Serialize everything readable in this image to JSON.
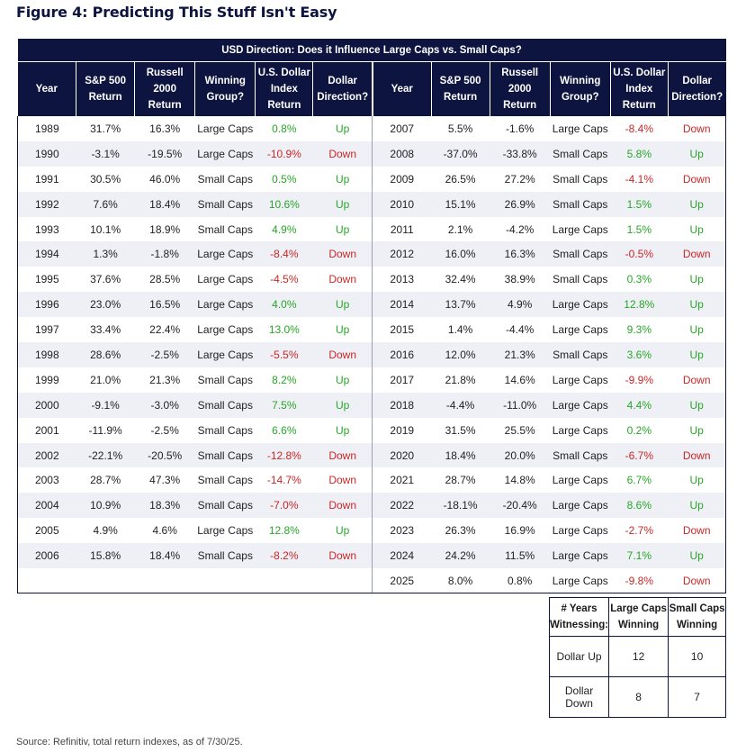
{
  "figure_title": "Figure 4: Predicting This Stuff Isn't Easy",
  "banner": "USD Direction: Does it Influence Large Caps vs. Small Caps?",
  "headers": {
    "year": "Year",
    "sp500": [
      "S&P 500",
      "Return"
    ],
    "russell": [
      "Russell",
      "2000",
      "Return"
    ],
    "winning": [
      "Winning",
      "Group?"
    ],
    "usd": [
      "U.S. Dollar",
      "Index",
      "Return"
    ],
    "direction": [
      "Dollar",
      "Direction?"
    ]
  },
  "left_rows": [
    [
      "1989",
      "31.7%",
      "16.3%",
      "Large Caps",
      "0.8%",
      "Up"
    ],
    [
      "1990",
      "-3.1%",
      "-19.5%",
      "Large Caps",
      "-10.9%",
      "Down"
    ],
    [
      "1991",
      "30.5%",
      "46.0%",
      "Small Caps",
      "0.5%",
      "Up"
    ],
    [
      "1992",
      "7.6%",
      "18.4%",
      "Small Caps",
      "10.6%",
      "Up"
    ],
    [
      "1993",
      "10.1%",
      "18.9%",
      "Small Caps",
      "4.9%",
      "Up"
    ],
    [
      "1994",
      "1.3%",
      "-1.8%",
      "Large Caps",
      "-8.4%",
      "Down"
    ],
    [
      "1995",
      "37.6%",
      "28.5%",
      "Large Caps",
      "-4.5%",
      "Down"
    ],
    [
      "1996",
      "23.0%",
      "16.5%",
      "Large Caps",
      "4.0%",
      "Up"
    ],
    [
      "1997",
      "33.4%",
      "22.4%",
      "Large Caps",
      "13.0%",
      "Up"
    ],
    [
      "1998",
      "28.6%",
      "-2.5%",
      "Large Caps",
      "-5.5%",
      "Down"
    ],
    [
      "1999",
      "21.0%",
      "21.3%",
      "Small Caps",
      "8.2%",
      "Up"
    ],
    [
      "2000",
      "-9.1%",
      "-3.0%",
      "Small Caps",
      "7.5%",
      "Up"
    ],
    [
      "2001",
      "-11.9%",
      "-2.5%",
      "Small Caps",
      "6.6%",
      "Up"
    ],
    [
      "2002",
      "-22.1%",
      "-20.5%",
      "Small Caps",
      "-12.8%",
      "Down"
    ],
    [
      "2003",
      "28.7%",
      "47.3%",
      "Small Caps",
      "-14.7%",
      "Down"
    ],
    [
      "2004",
      "10.9%",
      "18.3%",
      "Small Caps",
      "-7.0%",
      "Down"
    ],
    [
      "2005",
      "4.9%",
      "4.6%",
      "Large Caps",
      "12.8%",
      "Up"
    ],
    [
      "2006",
      "15.8%",
      "18.4%",
      "Small Caps",
      "-8.2%",
      "Down"
    ]
  ],
  "right_rows": [
    [
      "2007",
      "5.5%",
      "-1.6%",
      "Large Caps",
      "-8.4%",
      "Down"
    ],
    [
      "2008",
      "-37.0%",
      "-33.8%",
      "Small Caps",
      "5.8%",
      "Up"
    ],
    [
      "2009",
      "26.5%",
      "27.2%",
      "Small Caps",
      "-4.1%",
      "Down"
    ],
    [
      "2010",
      "15.1%",
      "26.9%",
      "Small Caps",
      "1.5%",
      "Up"
    ],
    [
      "2011",
      "2.1%",
      "-4.2%",
      "Large Caps",
      "1.5%",
      "Up"
    ],
    [
      "2012",
      "16.0%",
      "16.3%",
      "Small Caps",
      "-0.5%",
      "Down"
    ],
    [
      "2013",
      "32.4%",
      "38.9%",
      "Small Caps",
      "0.3%",
      "Up"
    ],
    [
      "2014",
      "13.7%",
      "4.9%",
      "Large Caps",
      "12.8%",
      "Up"
    ],
    [
      "2015",
      "1.4%",
      "-4.4%",
      "Large Caps",
      "9.3%",
      "Up"
    ],
    [
      "2016",
      "12.0%",
      "21.3%",
      "Small Caps",
      "3.6%",
      "Up"
    ],
    [
      "2017",
      "21.8%",
      "14.6%",
      "Large Caps",
      "-9.9%",
      "Down"
    ],
    [
      "2018",
      "-4.4%",
      "-11.0%",
      "Large Caps",
      "4.4%",
      "Up"
    ],
    [
      "2019",
      "31.5%",
      "25.5%",
      "Large Caps",
      "0.2%",
      "Up"
    ],
    [
      "2020",
      "18.4%",
      "20.0%",
      "Small Caps",
      "-6.7%",
      "Down"
    ],
    [
      "2021",
      "28.7%",
      "14.8%",
      "Large Caps",
      "6.7%",
      "Up"
    ],
    [
      "2022",
      "-18.1%",
      "-20.4%",
      "Large Caps",
      "8.6%",
      "Up"
    ],
    [
      "2023",
      "26.3%",
      "16.9%",
      "Large Caps",
      "-2.7%",
      "Down"
    ],
    [
      "2024",
      "24.2%",
      "11.5%",
      "Large Caps",
      "7.1%",
      "Up"
    ],
    [
      "2025",
      "8.0%",
      "0.8%",
      "Large Caps",
      "-9.8%",
      "Down"
    ]
  ],
  "summary": {
    "headers": [
      [
        "# Years",
        "Witnessing:"
      ],
      [
        "Large Caps",
        "Winning"
      ],
      [
        "Small Caps",
        "Winning"
      ]
    ],
    "rows": [
      [
        "Dollar Up",
        "12",
        "10"
      ],
      [
        "Dollar Down",
        "8",
        "7"
      ]
    ]
  },
  "colors": {
    "navy": "#0d1440",
    "up": "#27a627",
    "down": "#c72727",
    "shade": "#eef0f6"
  },
  "source": "Source: Refinitiv, total return indexes, as of 7/30/25."
}
